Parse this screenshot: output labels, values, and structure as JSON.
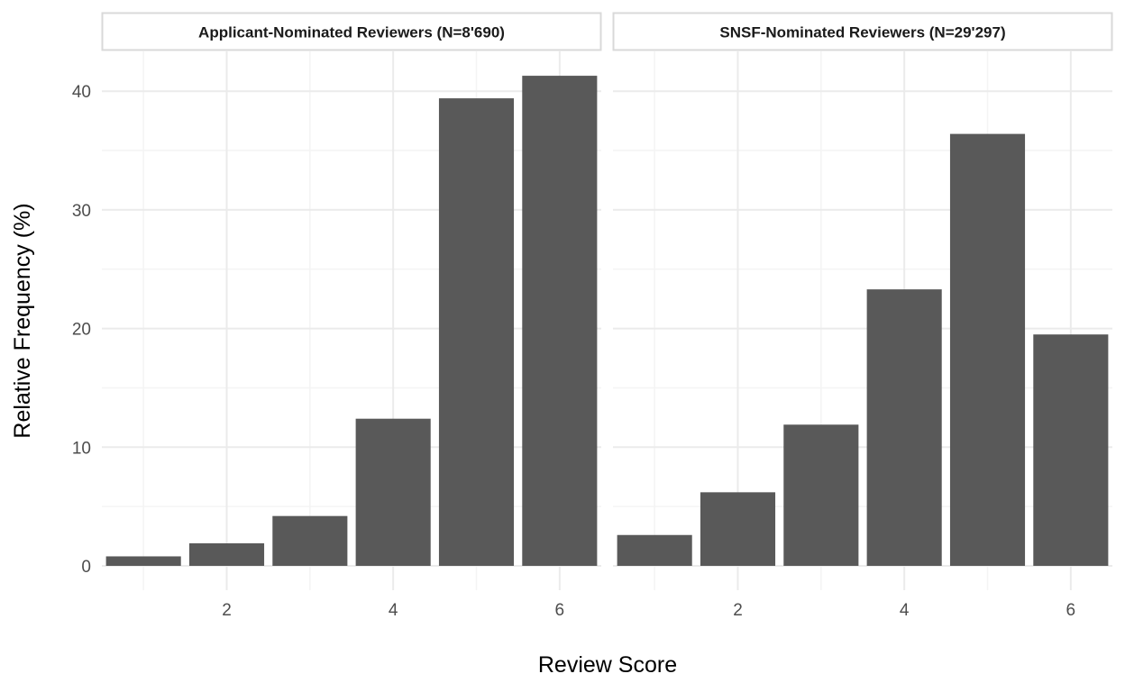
{
  "chart_data": {
    "type": "bar",
    "xlabel": "Review Score",
    "ylabel": "Relative Frequency (%)",
    "xlim": [
      0.5,
      6.5
    ],
    "ylim": [
      0,
      43
    ],
    "x_ticks": [
      2,
      4,
      6
    ],
    "y_ticks": [
      0,
      10,
      20,
      30,
      40
    ],
    "grid": true,
    "panels": [
      {
        "title": "Applicant-Nominated Reviewers (N=8'690)",
        "x": [
          1,
          2,
          3,
          4,
          5,
          6
        ],
        "values": [
          0.8,
          1.9,
          4.2,
          12.4,
          39.4,
          41.3
        ]
      },
      {
        "title": "SNSF-Nominated Reviewers (N=29'297)",
        "x": [
          1,
          2,
          3,
          4,
          5,
          6
        ],
        "values": [
          2.6,
          6.2,
          11.9,
          23.3,
          36.4,
          19.5
        ]
      }
    ],
    "colors": {
      "bar": "#595959",
      "grid_major": "#ebebeb",
      "grid_minor": "#f4f4f4",
      "strip_border": "#d9d9d9"
    }
  }
}
